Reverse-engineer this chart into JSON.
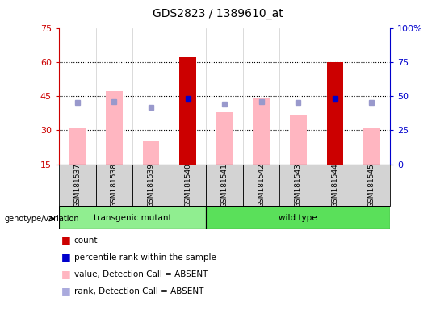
{
  "title": "GDS2823 / 1389610_at",
  "samples": [
    "GSM181537",
    "GSM181538",
    "GSM181539",
    "GSM181540",
    "GSM181541",
    "GSM181542",
    "GSM181543",
    "GSM181544",
    "GSM181545"
  ],
  "value_absent": [
    31,
    47,
    25,
    null,
    38,
    44,
    37,
    null,
    31
  ],
  "rank_absent": [
    45,
    46,
    42,
    null,
    44,
    46,
    45,
    null,
    45
  ],
  "count_present": [
    null,
    null,
    null,
    62,
    null,
    null,
    null,
    60,
    null
  ],
  "rank_present": [
    null,
    null,
    null,
    48,
    null,
    null,
    null,
    48,
    null
  ],
  "ylim_left": [
    15,
    75
  ],
  "ylim_right": [
    0,
    100
  ],
  "yticks_left": [
    15,
    30,
    45,
    60,
    75
  ],
  "yticks_right": [
    0,
    25,
    50,
    75,
    100
  ],
  "grid_values": [
    30,
    45,
    60
  ],
  "left_axis_color": "#CC0000",
  "right_axis_color": "#0000CC",
  "bar_width": 0.45,
  "transgenic_color": "#90EE90",
  "wildtype_color": "#5AE05A",
  "transgenic_range": [
    0,
    3
  ],
  "wildtype_range": [
    4,
    8
  ],
  "absent_bar_color": "#FFB6C1",
  "present_bar_color": "#CC0000",
  "rank_absent_color": "#9999CC",
  "rank_present_color": "#0000CC",
  "sample_box_color": "#D3D3D3",
  "legend_items": [
    {
      "label": "count",
      "color": "#CC0000"
    },
    {
      "label": "percentile rank within the sample",
      "color": "#0000CC"
    },
    {
      "label": "value, Detection Call = ABSENT",
      "color": "#FFB6C1"
    },
    {
      "label": "rank, Detection Call = ABSENT",
      "color": "#AAAADD"
    }
  ]
}
